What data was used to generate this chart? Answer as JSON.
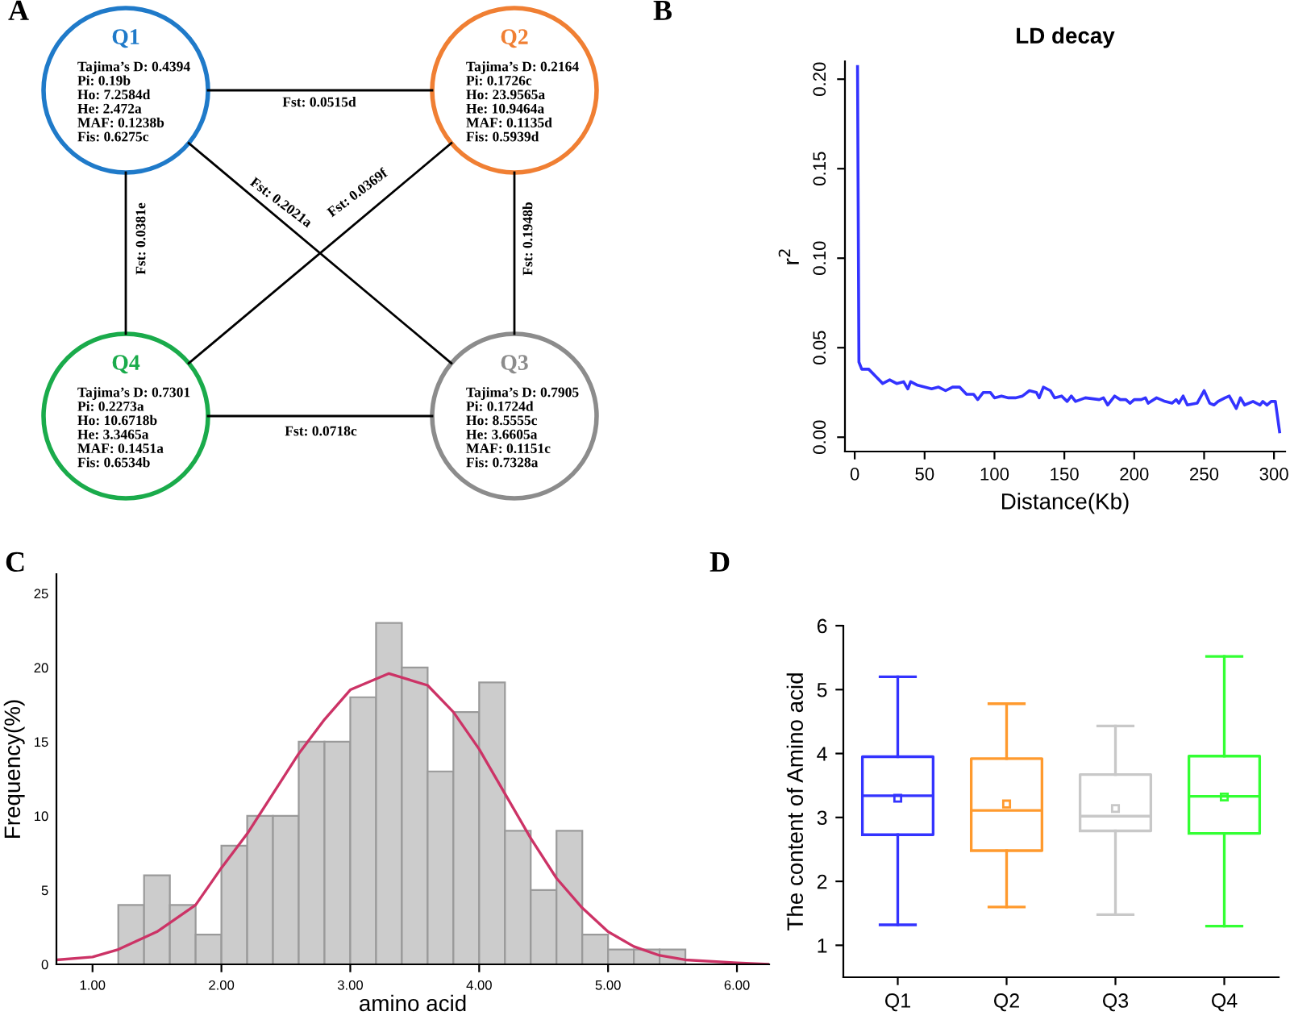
{
  "chart_data": [
    {
      "type": "other",
      "colors": [
        "#1f7ac9",
        "#f07f33",
        "#8c8c8c",
        "#1aab4b"
      ],
      "annotations": [
        "A",
        "Q1",
        "Tajima’s D: 0.4394",
        "Pi: 0.19b",
        "Ho: 7.2584d",
        "He: 2.472a",
        "MAF: 0.1238b",
        "Fis: 0.6275c",
        "Q2",
        "Tajima’s D: 0.2164",
        "Pi: 0.1726c",
        "Ho: 23.9565a",
        "He: 10.9464a",
        "MAF: 0.1135d",
        "Fis: 0.5939d",
        "Q3",
        "Tajima’s D: 0.7905",
        "Pi: 0.1724d",
        "Ho: 8.5555c",
        "He: 3.6605a",
        "MAF: 0.1151c",
        "Fis: 0.7328a",
        "Q4",
        "Tajima’s D: 0.7301",
        "Pi: 0.2273a",
        "Ho: 10.6718b",
        "He: 3.3465a",
        "MAF: 0.1451a",
        "Fis: 0.6534b",
        "Fst: 0.0515d",
        "Fst: 0.2021a",
        "Fst: 0.0369f",
        "Fst: 0.0381e",
        "Fst: 0.1948b",
        "Fst: 0.0718c"
      ]
    },
    {
      "type": "line",
      "title": "LD decay",
      "xlabel": "Distance(Kb)",
      "ylabel": "r$^{2}$",
      "annotations": [
        "B"
      ],
      "xlim": [
        -7,
        308
      ],
      "ylim": [
        -0.008,
        0.21
      ],
      "xticks": [
        0,
        50,
        100,
        150,
        200,
        250,
        300
      ],
      "yticks": [
        {
          "value": 0.0,
          "label": "0.00"
        },
        {
          "value": 0.05,
          "label": "0.05"
        },
        {
          "value": 0.1,
          "label": "0.10"
        },
        {
          "value": 0.15,
          "label": "0.15"
        },
        {
          "value": 0.2,
          "label": "0.20"
        }
      ],
      "series": [
        {
          "color": "#3333ff",
          "x": [
            2,
            3,
            5,
            10,
            15,
            20,
            25,
            30,
            35,
            38,
            40,
            45,
            50,
            55,
            60,
            65,
            70,
            75,
            80,
            85,
            88,
            92,
            97,
            100,
            105,
            110,
            115,
            120,
            125,
            130,
            132,
            135,
            140,
            143,
            148,
            152,
            155,
            158,
            165,
            175,
            178,
            181,
            186,
            190,
            194,
            197,
            200,
            205,
            208,
            210,
            216,
            222,
            227,
            230,
            232,
            235,
            238,
            245,
            250,
            254,
            257,
            260,
            265,
            268,
            273,
            276,
            279,
            285,
            290,
            292,
            295,
            298,
            301,
            304
          ],
          "values": [
            0.207,
            0.042,
            0.038,
            0.038,
            0.034,
            0.03,
            0.032,
            0.03,
            0.031,
            0.027,
            0.031,
            0.029,
            0.028,
            0.027,
            0.028,
            0.026,
            0.028,
            0.028,
            0.024,
            0.024,
            0.021,
            0.025,
            0.025,
            0.022,
            0.023,
            0.022,
            0.022,
            0.023,
            0.026,
            0.025,
            0.022,
            0.028,
            0.026,
            0.022,
            0.023,
            0.02,
            0.023,
            0.02,
            0.022,
            0.021,
            0.022,
            0.018,
            0.023,
            0.021,
            0.021,
            0.019,
            0.021,
            0.021,
            0.022,
            0.019,
            0.022,
            0.02,
            0.019,
            0.021,
            0.019,
            0.023,
            0.018,
            0.019,
            0.026,
            0.019,
            0.018,
            0.02,
            0.022,
            0.023,
            0.016,
            0.022,
            0.018,
            0.02,
            0.018,
            0.02,
            0.018,
            0.02,
            0.02,
            0.003
          ]
        }
      ]
    },
    {
      "type": "histogram",
      "xlabel": "amino acid",
      "ylabel": "Frequency(%)",
      "annotations": [
        "C"
      ],
      "xlim": [
        0.72,
        6.25
      ],
      "ylim": [
        0,
        26.3
      ],
      "xticks": [
        {
          "value": 1,
          "label": "1.00"
        },
        {
          "value": 2,
          "label": "2.00"
        },
        {
          "value": 3,
          "label": "3.00"
        },
        {
          "value": 4,
          "label": "4.00"
        },
        {
          "value": 5,
          "label": "5.00"
        },
        {
          "value": 6,
          "label": "6.00"
        }
      ],
      "yticks": [
        0,
        5,
        10,
        15,
        20,
        25
      ],
      "bins": [
        1.2,
        1.4,
        1.6,
        1.8,
        2.0,
        2.2,
        2.4,
        2.6,
        2.8,
        3.0,
        3.2,
        3.4,
        3.6,
        3.8,
        4.0,
        4.2,
        4.4,
        4.6,
        4.8,
        5.0,
        5.2,
        5.4,
        5.6
      ],
      "series": [
        {
          "type": "histogram",
          "color": "#cccccc",
          "values": [
            4,
            6,
            4,
            2,
            8,
            10,
            10,
            15,
            15,
            18,
            23,
            20,
            13,
            17,
            19,
            9,
            5,
            9,
            2,
            1,
            1,
            1
          ]
        },
        {
          "type": "line",
          "color": "#cc3366",
          "x": [
            0.72,
            1.0,
            1.2,
            1.5,
            1.8,
            2.0,
            2.2,
            2.4,
            2.6,
            2.8,
            3.0,
            3.3,
            3.6,
            3.8,
            4.0,
            4.2,
            4.4,
            4.6,
            4.8,
            5.0,
            5.2,
            5.4,
            5.6,
            6.0,
            6.25
          ],
          "values": [
            0.3,
            0.5,
            1.0,
            2.2,
            4.0,
            6.5,
            8.8,
            11.5,
            14.2,
            16.5,
            18.5,
            19.6,
            18.8,
            17.0,
            14.5,
            11.5,
            8.5,
            5.8,
            3.8,
            2.2,
            1.2,
            0.6,
            0.3,
            0.1,
            0.0
          ]
        }
      ]
    },
    {
      "type": "box",
      "ylabel": "The content of Amino acid",
      "annotations": [
        "D"
      ],
      "categories": [
        "Q1",
        "Q2",
        "Q3",
        "Q4"
      ],
      "colors": [
        "#3333ff",
        "#ff9a2e",
        "#c8c8c8",
        "#33ff33"
      ],
      "ylim": [
        0.5,
        6
      ],
      "yticks": [
        1,
        2,
        3,
        4,
        5,
        6
      ],
      "boxes": [
        {
          "low": 1.32,
          "q1": 2.73,
          "median": 3.34,
          "q3": 3.95,
          "high": 5.2,
          "mean": 3.3
        },
        {
          "low": 1.6,
          "q1": 2.48,
          "median": 3.11,
          "q3": 3.92,
          "high": 4.78,
          "mean": 3.21
        },
        {
          "low": 1.48,
          "q1": 2.79,
          "median": 3.02,
          "q3": 3.67,
          "high": 4.43,
          "mean": 3.14
        },
        {
          "low": 1.3,
          "q1": 2.75,
          "median": 3.33,
          "q3": 3.96,
          "high": 5.52,
          "mean": 3.32
        }
      ]
    }
  ]
}
